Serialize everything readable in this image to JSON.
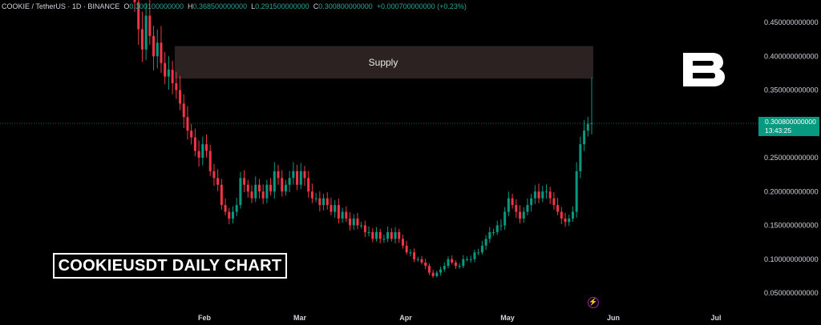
{
  "header": {
    "symbol": "COOKIE / TetherUS · 1D · BINANCE",
    "o_label": "O",
    "o_value": "0.300100000000",
    "h_label": "H",
    "h_value": "0.368500000000",
    "l_label": "L",
    "l_value": "0.291500000000",
    "c_label": "C",
    "c_value": "0.300800000000",
    "change": "+0.000700000000 (+0.23%)"
  },
  "price_tag": {
    "price": "0.300800000000",
    "countdown": "13:43:25"
  },
  "annotation": {
    "supply_label": "Supply"
  },
  "title_box": "COOKIEUSDT DAILY CHART",
  "colors": {
    "up": "#089981",
    "down": "#f23645",
    "supply_zone": "#2d2222",
    "background": "#000000"
  },
  "icons": {
    "logo": "b-logo-icon",
    "flash": "lightning-icon"
  },
  "chart_data": {
    "type": "candlestick",
    "title": "COOKIEUSDT DAILY CHART",
    "y_axis": {
      "ticks": [
        "0.450000000000",
        "0.400000000000",
        "0.350000000000",
        "0.300000000000",
        "0.250000000000",
        "0.200000000000",
        "0.150000000000",
        "0.100000000000",
        "0.050000000000"
      ],
      "tick_values": [
        0.45,
        0.4,
        0.35,
        0.3,
        0.25,
        0.2,
        0.15,
        0.1,
        0.05
      ],
      "ylim": [
        0.02,
        0.48
      ]
    },
    "x_axis": {
      "ticks": [
        "Feb",
        "Mar",
        "Apr",
        "May",
        "Jun",
        "Jul"
      ]
    },
    "supply_zone": {
      "low": 0.367,
      "high": 0.415,
      "label": "Supply"
    },
    "last_price": 0.3008,
    "closes": [
      0.48,
      0.44,
      0.41,
      0.46,
      0.43,
      0.4,
      0.42,
      0.39,
      0.37,
      0.38,
      0.36,
      0.35,
      0.33,
      0.31,
      0.29,
      0.28,
      0.26,
      0.25,
      0.27,
      0.26,
      0.23,
      0.22,
      0.21,
      0.18,
      0.17,
      0.16,
      0.17,
      0.18,
      0.22,
      0.21,
      0.2,
      0.19,
      0.21,
      0.2,
      0.19,
      0.21,
      0.2,
      0.23,
      0.22,
      0.2,
      0.21,
      0.22,
      0.23,
      0.21,
      0.23,
      0.22,
      0.2,
      0.19,
      0.19,
      0.18,
      0.19,
      0.18,
      0.17,
      0.18,
      0.16,
      0.17,
      0.16,
      0.15,
      0.16,
      0.15,
      0.15,
      0.14,
      0.14,
      0.13,
      0.14,
      0.13,
      0.13,
      0.14,
      0.13,
      0.14,
      0.13,
      0.12,
      0.11,
      0.11,
      0.1,
      0.1,
      0.095,
      0.09,
      0.08,
      0.075,
      0.08,
      0.085,
      0.09,
      0.1,
      0.095,
      0.09,
      0.09,
      0.1,
      0.1,
      0.1,
      0.11,
      0.11,
      0.12,
      0.13,
      0.14,
      0.14,
      0.15,
      0.15,
      0.17,
      0.19,
      0.18,
      0.17,
      0.16,
      0.17,
      0.18,
      0.19,
      0.2,
      0.19,
      0.2,
      0.2,
      0.19,
      0.18,
      0.17,
      0.16,
      0.155,
      0.16,
      0.17,
      0.23,
      0.27,
      0.29,
      0.3,
      0.3008
    ]
  }
}
